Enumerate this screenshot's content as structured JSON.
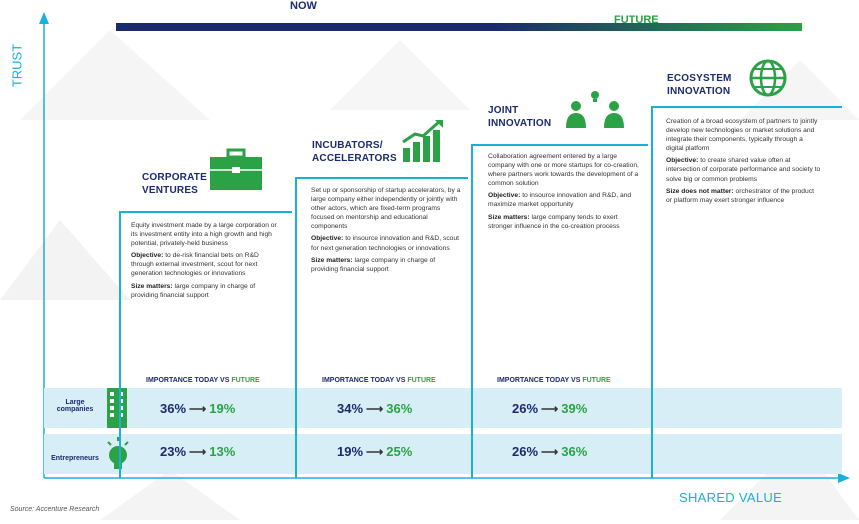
{
  "header": {
    "now_label": "NOW",
    "future_label": "FUTURE"
  },
  "axes": {
    "y_label": "TRUST",
    "x_label": "SHARED VALUE"
  },
  "rows": {
    "large": "Large companies",
    "entrepreneurs": "Entrepreneurs"
  },
  "panels": [
    {
      "title": [
        "CORPORATE",
        "VENTURES"
      ],
      "icon": "briefcase-icon",
      "description": "Equity investment made by a large corporation or its investment entity into a high growth and high potential, privately-held business",
      "objective_label": "Objective:",
      "objective": "to de-risk financial bets on R&D through external investment, scout for next generation technologies or innovations",
      "size_label": "Size matters:",
      "size": "large company in charge of providing financial support",
      "importance_today": "IMPORTANCE TODAY",
      "importance_vs": "VS",
      "importance_future": "FUTURE",
      "large": {
        "from": "36%",
        "to": "19%"
      },
      "entrepreneurs": {
        "from": "23%",
        "to": "13%"
      }
    },
    {
      "title": [
        "INCUBATORS/",
        "ACCELERATORS"
      ],
      "icon": "growth-chart-icon",
      "description": "Set up or sponsorship of startup accelerators, by a large company either independently or jointly with other actors, which are fixed-term programs focused on mentorship and educational components",
      "objective_label": "Objective:",
      "objective": "to insource innovation and R&D, scout for next generation technologies or innovations",
      "size_label": "Size matters:",
      "size": "large company in charge of providing financial support",
      "importance_today": "IMPORTANCE TODAY",
      "importance_vs": "VS",
      "importance_future": "FUTURE",
      "large": {
        "from": "34%",
        "to": "36%"
      },
      "entrepreneurs": {
        "from": "19%",
        "to": "25%"
      }
    },
    {
      "title": [
        "JOINT",
        "INNOVATION"
      ],
      "icon": "people-idea-icon",
      "description": "Collaboration agreement entered by a large company with one or more startups for co-creation, where partners work towards the development of a common solution",
      "objective_label": "Objective:",
      "objective": "to insource innovation and R&D, and maximize market opportunity",
      "size_label": "Size matters:",
      "size": "large company tends to exert stronger influence in the co-creation process",
      "importance_today": "IMPORTANCE TODAY",
      "importance_vs": "VS",
      "importance_future": "FUTURE",
      "large": {
        "from": "26%",
        "to": "39%"
      },
      "entrepreneurs": {
        "from": "26%",
        "to": "36%"
      }
    },
    {
      "title": [
        "ECOSYSTEM",
        "INNOVATION"
      ],
      "icon": "globe-icon",
      "description": "Creation of a broad ecosystem of partners to jointly develop new technologies or market solutions and integrate their components, typically through a digital platform",
      "objective_label": "Objective:",
      "objective": "to create shared value often at intersection of corporate performance and society to solve big or common problems",
      "size_label": "Size does not matter:",
      "size": "orchestrator of the product or platform may exert stronger influence"
    }
  ],
  "source": "Source: Accenture Research",
  "colors": {
    "navy": "#1b2a6b",
    "green": "#2aa245",
    "cyan": "#1ab0d8",
    "band": "#d8eef7"
  }
}
